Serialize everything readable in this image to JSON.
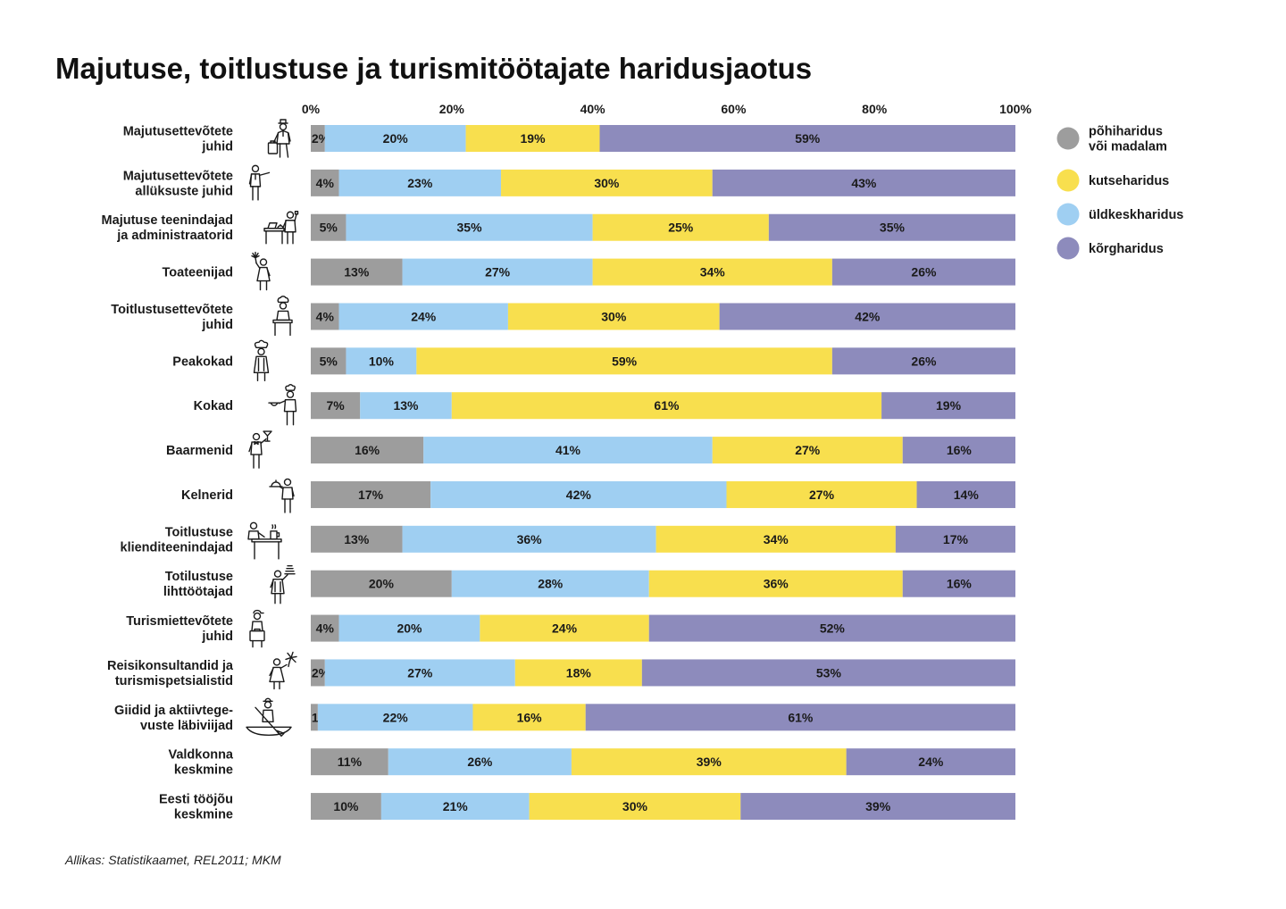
{
  "chart_data": {
    "type": "bar",
    "orientation": "horizontal",
    "stacked": true,
    "title": "Majutuse, toitlustuse ja turismitöötajate haridusjaotus",
    "xlim": [
      0,
      100
    ],
    "xticks": [
      0,
      20,
      40,
      60,
      80,
      100
    ],
    "x_axis_position": "top",
    "value_suffix": "%",
    "grid": false,
    "categories": [
      "Majutusettevõtete\njuhid",
      "Majutusettevõtete\nallüksuste juhid",
      "Majutuse teenindajad\nja administraatorid",
      "Toateenijad",
      "Toitlustusettevõtete\njuhid",
      "Peakokad",
      "Kokad",
      "Baarmenid",
      "Kelnerid",
      "Toitlustuse\nklienditeenindajad",
      "Totilustuse\nlihttöötajad",
      "Turismiettevõtete\njuhid",
      "Reisikonsultandid ja\nturismispetsialistid",
      "Giidid ja aktiivtege-\nvuste läbiviijad",
      "Valdkonna\nkeskmine",
      "Eesti tööjõu\nkeskmine"
    ],
    "category_icons": [
      "hotel-manager-icon",
      "supervisor-pointing-icon",
      "receptionist-desk-icon",
      "maid-duster-icon",
      "restaurant-manager-icon",
      "head-chef-icon",
      "cook-pan-icon",
      "bartender-icon",
      "waiter-tray-icon",
      "counter-server-icon",
      "kitchen-worker-icon",
      "tourism-manager-icon",
      "travel-agent-palm-icon",
      "guide-canoe-icon",
      null,
      null
    ],
    "series": [
      {
        "name": "põhiharidus\nvõi madalam",
        "color": "#9d9d9d",
        "values": [
          2,
          4,
          5,
          13,
          4,
          5,
          7,
          16,
          17,
          13,
          20,
          4,
          2,
          1,
          11,
          10
        ]
      },
      {
        "name": "üldkeskharidus",
        "color": "#9fcff2",
        "values": [
          20,
          23,
          35,
          27,
          24,
          10,
          13,
          41,
          42,
          36,
          28,
          20,
          27,
          22,
          26,
          21
        ]
      },
      {
        "name": "kutseharidus",
        "color": "#f8df4e",
        "values": [
          19,
          30,
          25,
          34,
          30,
          59,
          61,
          27,
          27,
          34,
          36,
          24,
          18,
          16,
          39,
          30
        ]
      },
      {
        "name": "kõrgharidus",
        "color": "#8d8bbc",
        "values": [
          59,
          43,
          35,
          26,
          42,
          26,
          19,
          16,
          14,
          17,
          16,
          52,
          53,
          61,
          24,
          39
        ]
      }
    ],
    "legend": {
      "position": "right",
      "order": [
        0,
        2,
        1,
        3
      ]
    }
  },
  "source": "Allikas: Statistikaamet, REL2011; MKM"
}
